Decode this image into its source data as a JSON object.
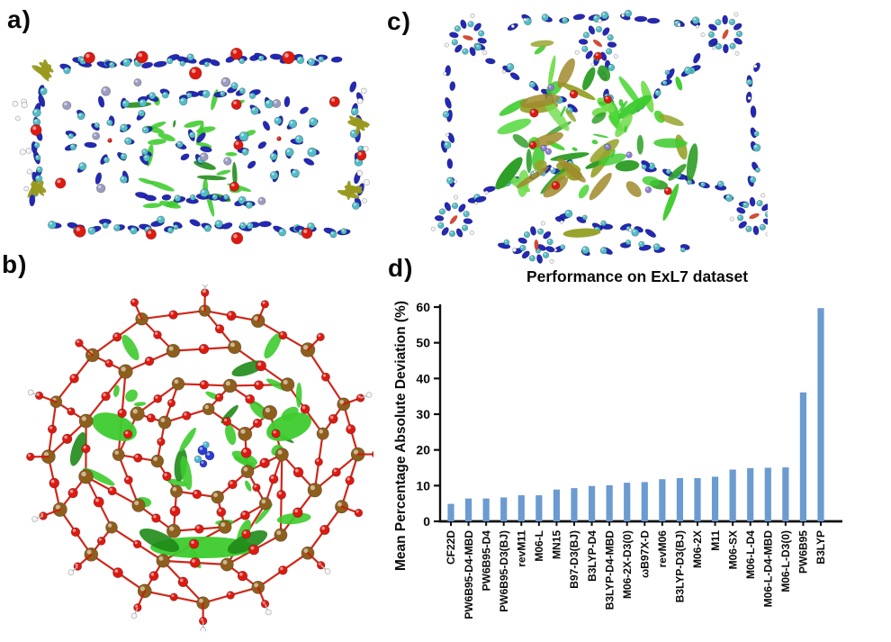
{
  "figure": {
    "panels": [
      {
        "id": "a",
        "label": "a)"
      },
      {
        "id": "b",
        "label": "b)"
      },
      {
        "id": "c",
        "label": "c)"
      },
      {
        "id": "d",
        "label": "d)"
      }
    ]
  },
  "colors": {
    "atom_blue": "#2328b6",
    "atom_cyan": "#52bcc6",
    "atom_red": "#dd1a10",
    "atom_grey": "#9c9cc0",
    "atom_brown": "#8e5f1c",
    "atom_white": "#f4f4f4",
    "bond_red": "#cc1d0e",
    "nci_green": "#3dcb2e",
    "nci_dark_green": "#1f8a18",
    "nci_olive": "#999920",
    "guest_blue": "#2a3bd0",
    "axis_black": "#0f0f0f"
  },
  "chart_data": {
    "type": "bar",
    "title": "Performance on ExL7 dataset",
    "xlabel": "",
    "ylabel": "Mean Percentage Absolute Deviation (%)",
    "ylim": [
      0,
      60
    ],
    "yticks": [
      0,
      10,
      20,
      30,
      40,
      50,
      60
    ],
    "grid": false,
    "legend_position": "none",
    "bar_color": "#6b9bd0",
    "categories": [
      "CF22D",
      "PW6B95-D4-MBD",
      "PW6B95-D4",
      "PW6B95-D3(BJ)",
      "revM11",
      "M06-L",
      "MN15",
      "B97-D3(BJ)",
      "B3LYP-D4",
      "B3LYP-D4-MBD",
      "M06-2X-D3(0)",
      "ωB97X-D",
      "revM06",
      "B3LYP-D3(BJ)",
      "M06-2X",
      "M11",
      "M06-SX",
      "M06-L-D4",
      "M06-L-D4-MBD",
      "M06-L-D3(0)",
      "PW6B95",
      "B3LYP"
    ],
    "values": [
      4.9,
      6.4,
      6.4,
      6.7,
      7.3,
      7.3,
      8.9,
      9.3,
      9.9,
      10.1,
      10.8,
      11.0,
      11.8,
      12.1,
      12.1,
      12.5,
      14.5,
      14.9,
      15.0,
      15.1,
      36.1,
      59.7
    ]
  }
}
